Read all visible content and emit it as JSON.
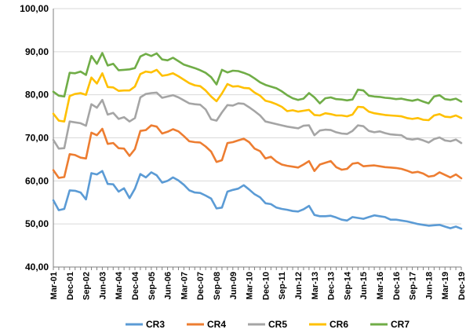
{
  "chart_data": {
    "type": "line",
    "title": "",
    "xlabel": "",
    "ylabel": "",
    "ylim": [
      40,
      100
    ],
    "yticks": [
      "40,00",
      "50,00",
      "60,00",
      "70,00",
      "80,00",
      "90,00",
      "100,00"
    ],
    "grid": "horizontal",
    "legend_position": "bottom",
    "x_tick_labels": [
      "Mar-01",
      "Dec-01",
      "Sep-02",
      "Jun-03",
      "Mar-04",
      "Dec-04",
      "Sep-05",
      "Jun-06",
      "Mar-07",
      "Dec-07",
      "Sep-08",
      "Jun-09",
      "Mar-10",
      "Dec-10",
      "Sep-11",
      "Jun-12",
      "Mar-13",
      "Dec-13",
      "Sep-14",
      "Jun-15",
      "Mar-16",
      "Dec-16",
      "Sep-17",
      "Jun-18",
      "Mar-19",
      "Dec-19"
    ],
    "x": [
      "Mar-01",
      "Jun-01",
      "Sep-01",
      "Dec-01",
      "Mar-02",
      "Jun-02",
      "Sep-02",
      "Dec-02",
      "Mar-03",
      "Jun-03",
      "Sep-03",
      "Dec-03",
      "Mar-04",
      "Jun-04",
      "Sep-04",
      "Dec-04",
      "Mar-05",
      "Jun-05",
      "Sep-05",
      "Dec-05",
      "Mar-06",
      "Jun-06",
      "Sep-06",
      "Dec-06",
      "Mar-07",
      "Jun-07",
      "Sep-07",
      "Dec-07",
      "Mar-08",
      "Jun-08",
      "Sep-08",
      "Dec-08",
      "Mar-09",
      "Jun-09",
      "Sep-09",
      "Dec-09",
      "Mar-10",
      "Jun-10",
      "Sep-10",
      "Dec-10",
      "Mar-11",
      "Jun-11",
      "Sep-11",
      "Dec-11",
      "Mar-12",
      "Jun-12",
      "Sep-12",
      "Dec-12",
      "Mar-13",
      "Jun-13",
      "Sep-13",
      "Dec-13",
      "Mar-14",
      "Jun-14",
      "Sep-14",
      "Dec-14",
      "Mar-15",
      "Jun-15",
      "Sep-15",
      "Dec-15",
      "Mar-16",
      "Jun-16",
      "Sep-16",
      "Dec-16",
      "Mar-17",
      "Jun-17",
      "Sep-17",
      "Dec-17",
      "Mar-18",
      "Jun-18",
      "Sep-18",
      "Dec-18",
      "Mar-19",
      "Jun-19",
      "Sep-19",
      "Dec-19"
    ],
    "series": [
      {
        "name": "CR3",
        "color": "#5b9bd5",
        "values": [
          55.5,
          53.2,
          53.5,
          57.8,
          57.7,
          57.3,
          55.7,
          61.8,
          61.5,
          62.3,
          59.3,
          59.2,
          57.5,
          58.3,
          56.0,
          58.2,
          61.6,
          60.8,
          62.0,
          61.3,
          59.6,
          60.0,
          60.8,
          60.1,
          59.1,
          57.8,
          57.3,
          57.2,
          56.6,
          55.9,
          53.6,
          53.8,
          57.5,
          57.9,
          58.2,
          59.0,
          58.0,
          56.9,
          56.2,
          54.8,
          54.6,
          53.8,
          53.5,
          53.3,
          53.0,
          52.9,
          53.4,
          54.2,
          52.1,
          51.8,
          51.8,
          51.9,
          51.5,
          51.0,
          50.8,
          51.6,
          51.4,
          51.2,
          51.6,
          52.0,
          51.8,
          51.6,
          51.0,
          51.0,
          50.8,
          50.6,
          50.3,
          50.0,
          49.8,
          49.6,
          49.7,
          49.8,
          49.4,
          49.0,
          49.4,
          48.9
        ]
      },
      {
        "name": "CR4",
        "color": "#ed7d31",
        "values": [
          62.5,
          60.7,
          60.9,
          66.2,
          66.0,
          65.4,
          65.2,
          71.2,
          70.6,
          72.1,
          68.6,
          68.8,
          67.6,
          67.5,
          65.8,
          67.4,
          71.6,
          71.8,
          72.9,
          72.6,
          71.0,
          71.4,
          72.0,
          71.5,
          70.4,
          69.2,
          69.0,
          68.9,
          68.0,
          66.8,
          64.4,
          64.8,
          68.8,
          69.0,
          69.4,
          69.8,
          69.0,
          67.5,
          66.9,
          65.2,
          65.6,
          64.5,
          63.8,
          63.5,
          63.3,
          63.1,
          63.8,
          64.6,
          62.3,
          63.8,
          64.2,
          64.6,
          63.2,
          62.6,
          62.8,
          64.0,
          64.2,
          63.4,
          63.5,
          63.6,
          63.4,
          63.2,
          63.1,
          63.0,
          62.8,
          62.4,
          61.9,
          62.1,
          61.7,
          61.0,
          61.2,
          62.0,
          61.4,
          60.8,
          61.5,
          60.6
        ]
      },
      {
        "name": "CR5",
        "color": "#a5a5a5",
        "values": [
          69.5,
          67.5,
          67.6,
          73.8,
          73.6,
          73.4,
          72.8,
          77.8,
          77.0,
          78.8,
          75.4,
          75.8,
          74.4,
          74.8,
          73.8,
          74.6,
          79.4,
          80.2,
          80.4,
          80.5,
          79.3,
          79.6,
          79.9,
          79.4,
          78.7,
          78.0,
          77.8,
          77.7,
          76.6,
          74.3,
          74.0,
          75.9,
          77.6,
          77.5,
          78.0,
          77.9,
          77.1,
          76.2,
          75.2,
          73.8,
          73.5,
          73.2,
          72.9,
          72.6,
          72.4,
          72.2,
          72.8,
          72.9,
          70.6,
          71.7,
          71.9,
          71.8,
          71.3,
          71.0,
          70.9,
          71.6,
          72.9,
          72.7,
          71.6,
          71.3,
          71.5,
          71.1,
          70.8,
          70.7,
          70.6,
          69.8,
          69.6,
          69.8,
          69.4,
          68.9,
          69.7,
          70.1,
          69.4,
          69.2,
          69.6,
          68.8
        ]
      },
      {
        "name": "CR6",
        "color": "#ffc000",
        "values": [
          75.6,
          74.0,
          73.8,
          79.7,
          80.2,
          80.4,
          80.0,
          84.0,
          82.6,
          85.0,
          81.8,
          81.7,
          80.9,
          81.0,
          81.0,
          81.9,
          84.8,
          85.4,
          85.2,
          85.8,
          84.4,
          84.6,
          85.0,
          84.3,
          83.5,
          82.7,
          82.2,
          82.0,
          81.0,
          79.6,
          78.5,
          80.3,
          82.5,
          81.9,
          82.0,
          81.6,
          81.5,
          80.5,
          79.8,
          78.6,
          78.3,
          77.8,
          77.2,
          76.2,
          76.4,
          76.1,
          76.3,
          76.5,
          75.3,
          75.2,
          75.7,
          75.5,
          75.2,
          75.2,
          75.0,
          75.4,
          77.2,
          77.1,
          76.1,
          75.7,
          75.5,
          75.3,
          75.2,
          75.1,
          75.0,
          74.6,
          74.4,
          74.6,
          74.2,
          74.1,
          75.2,
          75.5,
          74.9,
          74.8,
          75.2,
          74.6
        ]
      },
      {
        "name": "CR7",
        "color": "#70ad47",
        "values": [
          80.7,
          79.8,
          79.6,
          85.1,
          85.0,
          85.4,
          84.6,
          89.0,
          87.2,
          89.7,
          86.8,
          87.2,
          85.7,
          85.8,
          85.9,
          86.2,
          88.9,
          89.5,
          89.0,
          89.6,
          88.2,
          88.0,
          88.6,
          87.8,
          87.0,
          86.6,
          86.2,
          85.7,
          85.1,
          84.1,
          82.4,
          85.8,
          85.2,
          85.6,
          85.5,
          85.1,
          84.6,
          83.8,
          82.9,
          82.3,
          81.9,
          81.5,
          80.8,
          79.9,
          79.2,
          78.8,
          79.1,
          80.4,
          79.4,
          78.0,
          79.2,
          79.4,
          79.0,
          78.9,
          78.7,
          78.9,
          81.2,
          81.0,
          79.8,
          79.6,
          79.5,
          79.3,
          79.2,
          79.0,
          79.1,
          78.8,
          78.6,
          78.9,
          78.4,
          78.0,
          79.6,
          79.9,
          79.0,
          78.8,
          79.1,
          78.4
        ]
      }
    ]
  }
}
